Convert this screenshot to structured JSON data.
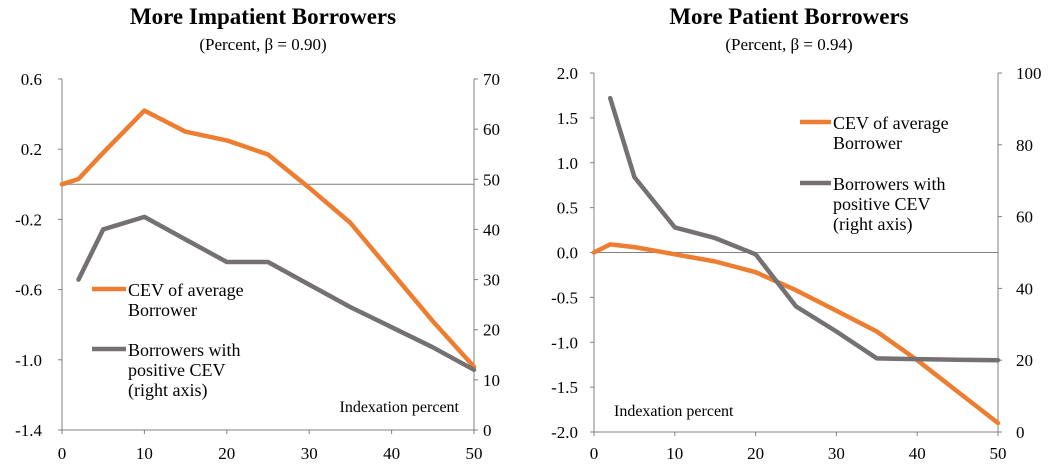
{
  "colors": {
    "orange": "#ED7D31",
    "gray": "#767171",
    "axis": "#808080"
  },
  "chart_data": [
    {
      "type": "line",
      "title": "More Impatient Borrowers",
      "subtitle": "(Percent, β = 0.90)",
      "xlabel": "Indexation percent",
      "xlim": [
        0,
        50
      ],
      "xticks": [
        "0",
        "10",
        "20",
        "30",
        "40",
        "50"
      ],
      "ylim_left": [
        -1.4,
        0.6
      ],
      "yticks_left": [
        "0.6",
        "0.2",
        "-0.2",
        "-0.6",
        "-1.0",
        "-1.4"
      ],
      "ylim_right": [
        0,
        70
      ],
      "yticks_right": [
        "70",
        "60",
        "50",
        "40",
        "30",
        "20",
        "10",
        "0"
      ],
      "grid": false,
      "series": [
        {
          "name": "CEV of average Borrower",
          "name_lines": [
            "CEV of average",
            "Borrower"
          ],
          "axis": "left",
          "color": "#ED7D31",
          "x": [
            0,
            2,
            5,
            10,
            15,
            20,
            25,
            30,
            35,
            40,
            45,
            50
          ],
          "y": [
            0.0,
            0.03,
            0.18,
            0.42,
            0.3,
            0.25,
            0.17,
            -0.02,
            -0.22,
            -0.5,
            -0.78,
            -1.04
          ]
        },
        {
          "name": "Borrowers with positive CEV (right axis)",
          "name_lines": [
            "Borrowers with",
            "positive CEV",
            "(right axis)"
          ],
          "axis": "right",
          "color": "#767171",
          "x": [
            2,
            5,
            10,
            15,
            20,
            25,
            30,
            35,
            40,
            45,
            50
          ],
          "y": [
            30,
            40,
            42.5,
            38,
            33.5,
            33.5,
            29,
            24.5,
            20.5,
            16.5,
            12
          ]
        }
      ]
    },
    {
      "type": "line",
      "title": "More Patient Borrowers",
      "subtitle": "(Percent, β = 0.94)",
      "xlabel": "Indexation percent",
      "xlim": [
        0,
        50
      ],
      "xticks": [
        "0",
        "10",
        "20",
        "30",
        "40",
        "50"
      ],
      "ylim_left": [
        -2.0,
        2.0
      ],
      "yticks_left": [
        "2.0",
        "1.5",
        "1.0",
        "0.5",
        "0.0",
        "-0.5",
        "-1.0",
        "-1.5",
        "-2.0"
      ],
      "ylim_right": [
        0,
        100
      ],
      "yticks_right": [
        "100",
        "80",
        "60",
        "40",
        "20",
        "0"
      ],
      "grid": false,
      "series": [
        {
          "name": "CEV of average Borrower",
          "name_lines": [
            "CEV of average",
            "Borrower"
          ],
          "axis": "left",
          "color": "#ED7D31",
          "x": [
            0,
            2,
            5,
            10,
            15,
            20,
            25,
            30,
            35,
            40,
            45,
            50
          ],
          "y": [
            0.0,
            0.09,
            0.06,
            -0.02,
            -0.1,
            -0.22,
            -0.42,
            -0.65,
            -0.88,
            -1.2,
            -1.55,
            -1.9
          ]
        },
        {
          "name": "Borrowers with positive CEV (right axis)",
          "name_lines": [
            "Borrowers with",
            "positive CEV",
            "(right axis)"
          ],
          "axis": "right",
          "color": "#767171",
          "x": [
            2,
            5,
            10,
            15,
            20,
            25,
            30,
            35,
            40,
            45,
            50
          ],
          "y": [
            93,
            71,
            57,
            54,
            49.5,
            35,
            28,
            20.5,
            20.3,
            20.1,
            20
          ]
        }
      ]
    }
  ]
}
